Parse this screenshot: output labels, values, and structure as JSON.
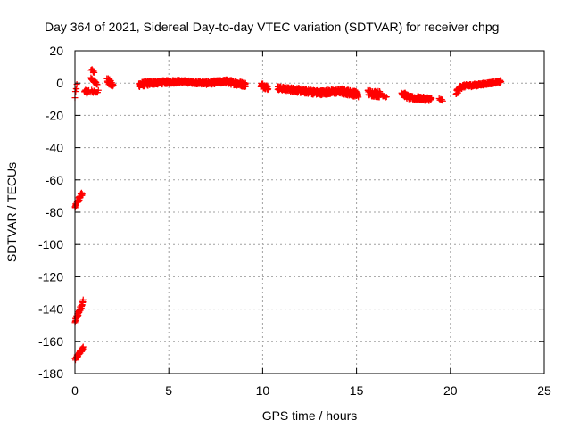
{
  "chart_data": {
    "type": "scatter",
    "title": "Day 364 of 2021, Sidereal Day-to-day VTEC variation (SDTVAR) for receiver chpg",
    "xlabel": "GPS time / hours",
    "ylabel": "SDTVAR / TECUs",
    "xlim": [
      0,
      25
    ],
    "ylim": [
      -180,
      20
    ],
    "xticks": [
      0,
      5,
      10,
      15,
      20,
      25
    ],
    "yticks": [
      -180,
      -160,
      -140,
      -120,
      -100,
      -80,
      -60,
      -40,
      -20,
      0,
      20
    ],
    "grid": true,
    "marker": "+",
    "color": "#ff0000",
    "series": [
      {
        "name": "SDTVAR",
        "segments": [
          {
            "x_start": 0.0,
            "x_end": 0.15,
            "y_start": -77,
            "y_end": -73,
            "noise": 1.2,
            "step": 0.012
          },
          {
            "x_start": 0.15,
            "x_end": 0.4,
            "y_start": -73,
            "y_end": -68,
            "noise": 1.5,
            "step": 0.012
          },
          {
            "x_start": 0.0,
            "x_end": 0.2,
            "y_start": -148,
            "y_end": -142,
            "noise": 1.5,
            "step": 0.012
          },
          {
            "x_start": 0.2,
            "x_end": 0.45,
            "y_start": -142,
            "y_end": -135,
            "noise": 1.5,
            "step": 0.012
          },
          {
            "x_start": 0.0,
            "x_end": 0.2,
            "y_start": -171,
            "y_end": -168,
            "noise": 1.0,
            "step": 0.012
          },
          {
            "x_start": 0.2,
            "x_end": 0.45,
            "y_start": -168,
            "y_end": -164,
            "noise": 1.0,
            "step": 0.012
          },
          {
            "x_start": 0.0,
            "x_end": 0.1,
            "y_start": -8,
            "y_end": 0,
            "noise": 2.0,
            "step": 0.02
          },
          {
            "x_start": 0.5,
            "x_end": 0.75,
            "y_start": -6,
            "y_end": -5,
            "noise": 1.5,
            "step": 0.02
          },
          {
            "x_start": 0.85,
            "x_end": 1.05,
            "y_start": 8,
            "y_end": 7,
            "noise": 1.0,
            "step": 0.03
          },
          {
            "x_start": 0.85,
            "x_end": 1.2,
            "y_start": 3,
            "y_end": -1,
            "noise": 1.0,
            "step": 0.02
          },
          {
            "x_start": 0.85,
            "x_end": 1.25,
            "y_start": -5,
            "y_end": -5,
            "noise": 1.0,
            "step": 0.04
          },
          {
            "x_start": 1.7,
            "x_end": 2.05,
            "y_start": 2,
            "y_end": -2,
            "noise": 2.0,
            "step": 0.015
          },
          {
            "x_start": 3.4,
            "x_end": 4.0,
            "y_start": -1,
            "y_end": 0,
            "noise": 1.5,
            "step": 0.01
          },
          {
            "x_start": 4.0,
            "x_end": 5.5,
            "y_start": 0,
            "y_end": 1,
            "noise": 1.2,
            "step": 0.01
          },
          {
            "x_start": 5.5,
            "x_end": 7.0,
            "y_start": 1,
            "y_end": 0,
            "noise": 1.0,
            "step": 0.01
          },
          {
            "x_start": 7.0,
            "x_end": 8.0,
            "y_start": 0,
            "y_end": 1,
            "noise": 1.2,
            "step": 0.01
          },
          {
            "x_start": 8.0,
            "x_end": 9.1,
            "y_start": 1,
            "y_end": -1,
            "noise": 1.5,
            "step": 0.01
          },
          {
            "x_start": 9.9,
            "x_end": 10.3,
            "y_start": -1,
            "y_end": -3,
            "noise": 1.5,
            "step": 0.012
          },
          {
            "x_start": 10.8,
            "x_end": 11.5,
            "y_start": -3,
            "y_end": -4,
            "noise": 1.2,
            "step": 0.012
          },
          {
            "x_start": 11.5,
            "x_end": 13.0,
            "y_start": -4,
            "y_end": -6,
            "noise": 1.5,
            "step": 0.01
          },
          {
            "x_start": 13.0,
            "x_end": 14.2,
            "y_start": -6,
            "y_end": -5,
            "noise": 1.5,
            "step": 0.01
          },
          {
            "x_start": 14.2,
            "x_end": 15.1,
            "y_start": -5,
            "y_end": -7,
            "noise": 1.8,
            "step": 0.01
          },
          {
            "x_start": 15.6,
            "x_end": 16.3,
            "y_start": -6,
            "y_end": -7,
            "noise": 2.0,
            "step": 0.015
          },
          {
            "x_start": 16.4,
            "x_end": 16.6,
            "y_start": -8,
            "y_end": -8,
            "noise": 0.8,
            "step": 0.05
          },
          {
            "x_start": 17.4,
            "x_end": 17.8,
            "y_start": -6,
            "y_end": -9,
            "noise": 1.5,
            "step": 0.015
          },
          {
            "x_start": 17.8,
            "x_end": 19.0,
            "y_start": -9,
            "y_end": -10,
            "noise": 1.2,
            "step": 0.012
          },
          {
            "x_start": 19.4,
            "x_end": 19.6,
            "y_start": -10,
            "y_end": -11,
            "noise": 0.8,
            "step": 0.04
          },
          {
            "x_start": 20.3,
            "x_end": 20.6,
            "y_start": -6,
            "y_end": -2,
            "noise": 1.5,
            "step": 0.015
          },
          {
            "x_start": 20.6,
            "x_end": 21.5,
            "y_start": -2,
            "y_end": -1,
            "noise": 1.0,
            "step": 0.012
          },
          {
            "x_start": 21.5,
            "x_end": 22.7,
            "y_start": -1,
            "y_end": 1,
            "noise": 0.8,
            "step": 0.012
          }
        ]
      }
    ]
  }
}
